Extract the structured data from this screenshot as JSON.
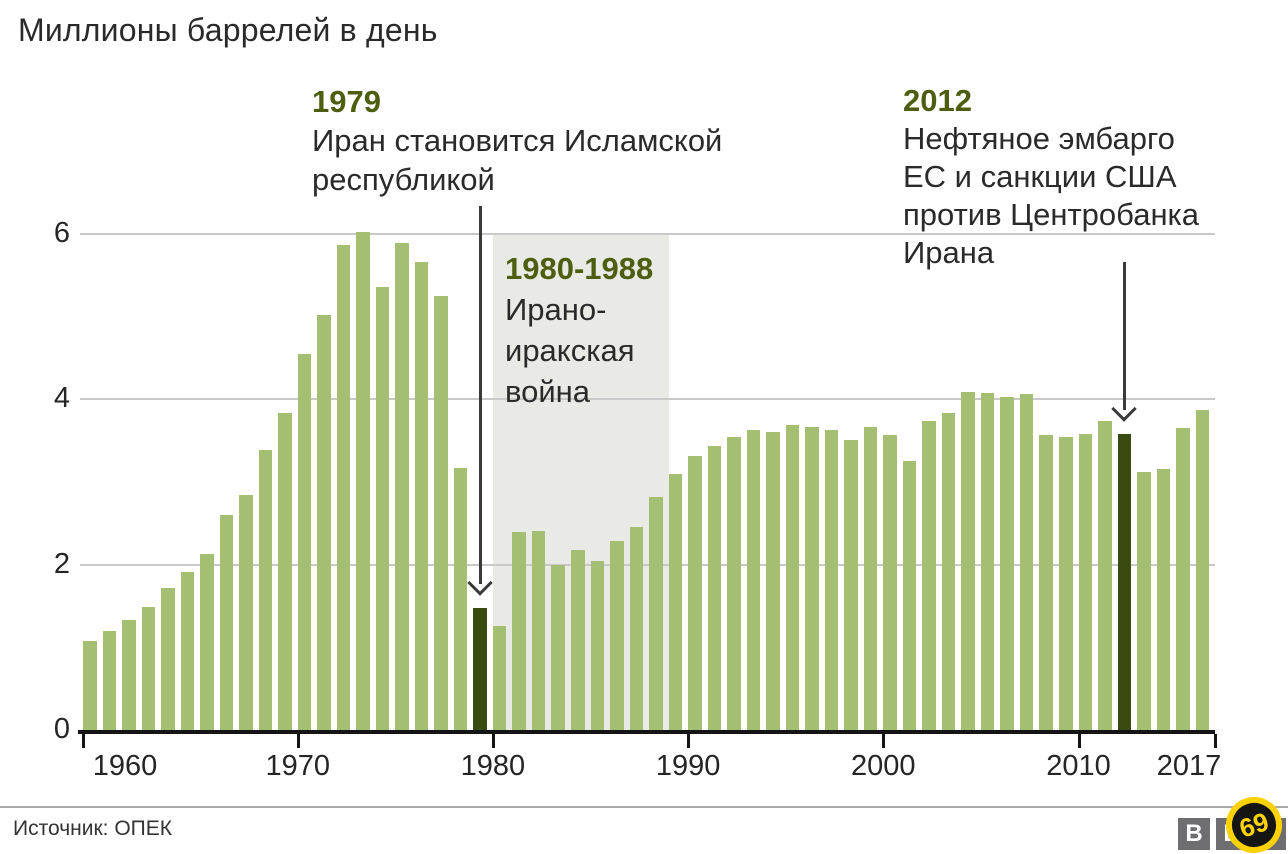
{
  "title": "Миллионы баррелей в день",
  "chart_data": {
    "type": "bar",
    "title": "Миллионы баррелей в день",
    "ylabel": "Миллионы баррелей в день",
    "xlabel": "",
    "grid": true,
    "legend_position": "none",
    "ylim": [
      0,
      6.2
    ],
    "y_ticks": [
      0,
      2,
      4,
      6
    ],
    "x_tick_labels": [
      "1960",
      "1970",
      "1980",
      "1990",
      "2000",
      "2010",
      "2017"
    ],
    "years": [
      1960,
      1961,
      1962,
      1963,
      1964,
      1965,
      1966,
      1967,
      1968,
      1969,
      1970,
      1971,
      1972,
      1973,
      1974,
      1975,
      1976,
      1977,
      1978,
      1979,
      1980,
      1981,
      1982,
      1983,
      1984,
      1985,
      1986,
      1987,
      1988,
      1989,
      1990,
      1991,
      1992,
      1993,
      1994,
      1995,
      1996,
      1997,
      1998,
      1999,
      2000,
      2001,
      2002,
      2003,
      2004,
      2005,
      2006,
      2007,
      2008,
      2009,
      2010,
      2011,
      2012,
      2013,
      2014,
      2015,
      2016,
      2017
    ],
    "values": [
      1.07,
      1.2,
      1.33,
      1.49,
      1.71,
      1.91,
      2.13,
      2.6,
      2.84,
      3.38,
      3.83,
      4.54,
      5.02,
      5.86,
      6.02,
      5.35,
      5.88,
      5.66,
      5.24,
      3.17,
      1.48,
      1.26,
      2.39,
      2.41,
      2.0,
      2.17,
      2.04,
      2.28,
      2.45,
      2.81,
      3.09,
      3.31,
      3.43,
      3.54,
      3.62,
      3.6,
      3.69,
      3.66,
      3.63,
      3.51,
      3.66,
      3.57,
      3.25,
      3.74,
      3.83,
      4.09,
      4.07,
      4.03,
      4.06,
      3.56,
      3.54,
      3.58,
      3.74,
      3.58,
      3.12,
      3.15,
      3.65,
      3.87
    ],
    "dark_bar_indices": [
      20,
      53
    ],
    "war_band": {
      "label": "1980-1988",
      "tick_start": "1980",
      "years_covered": 9
    }
  },
  "annotations": {
    "revolution": {
      "year": "1979",
      "lines": [
        "Иран становится Исламской",
        "республикой"
      ]
    },
    "war": {
      "year": "1980-1988",
      "lines": [
        "Ирано-",
        "иракская",
        "война"
      ]
    },
    "sanctions": {
      "year": "2012",
      "lines": [
        "Нефтяное эмбарго",
        "ЕС и санкции США",
        "против Центробанка",
        "Ирана"
      ]
    }
  },
  "footer": {
    "source": "Источник: ОПЕК",
    "logo_letters": [
      "B",
      "B",
      "C"
    ],
    "badge_text": "69"
  },
  "colors": {
    "bar_green": "#a5bf72",
    "bar_dark": "#3a4a10",
    "accent_green": "#4d5e10",
    "band_gray": "#e9e9e6",
    "grid_gray": "#c9c9c9",
    "axis_black": "#141414",
    "text_dark": "#2a2a2a"
  }
}
